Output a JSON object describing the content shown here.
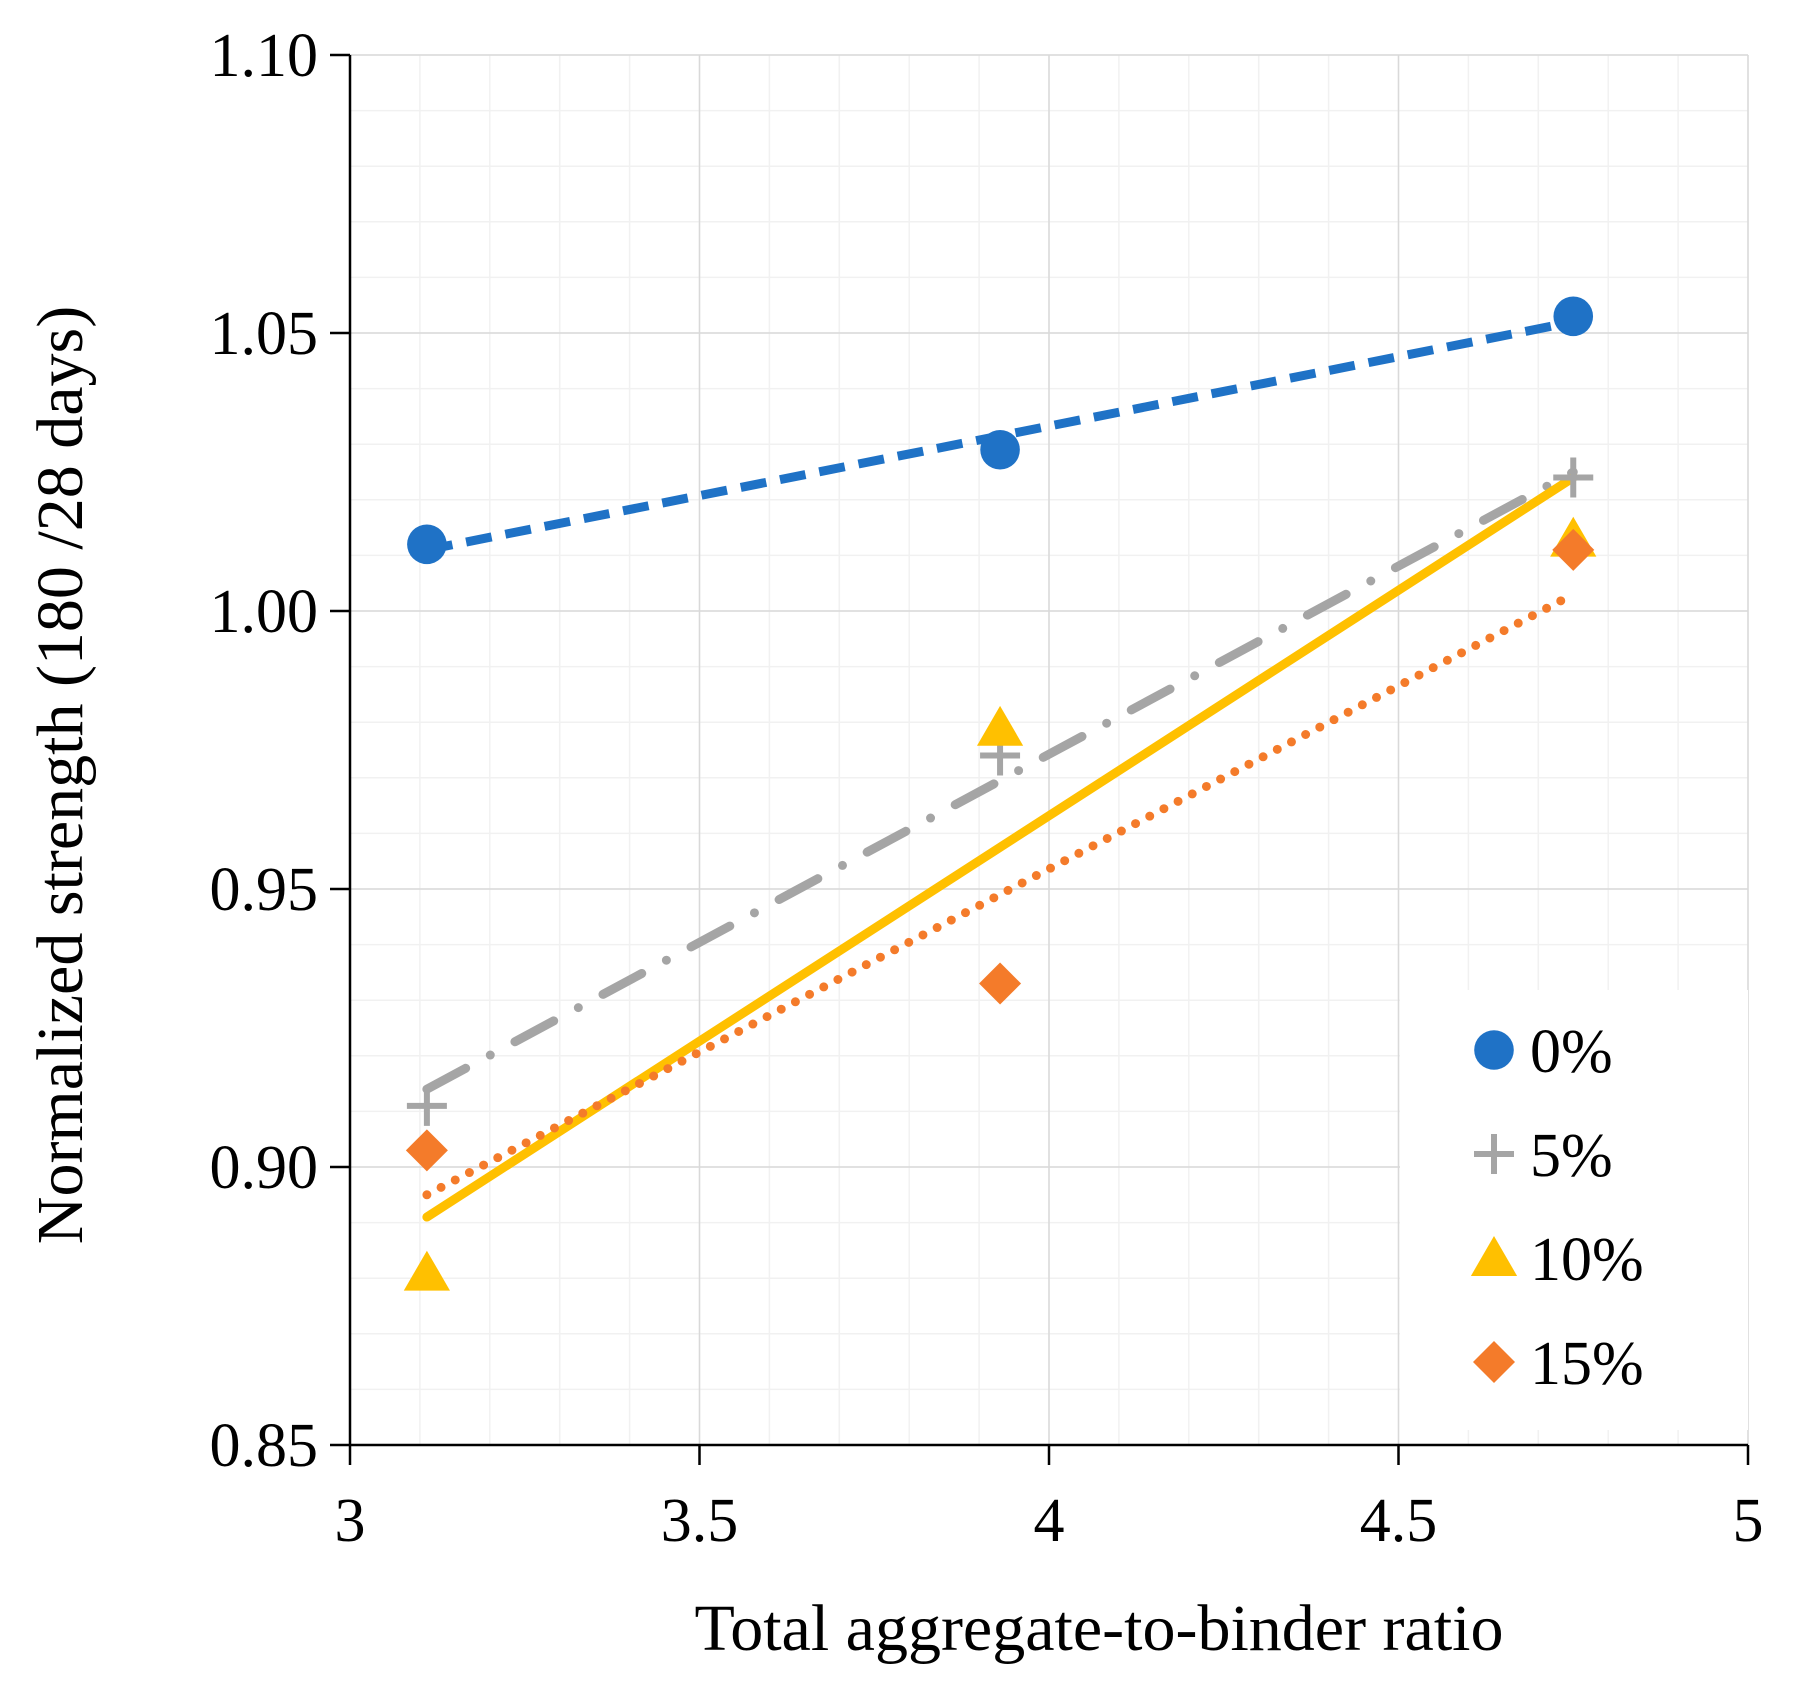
{
  "chart_data": {
    "type": "scatter",
    "title": "",
    "xlabel": "Total aggregate-to-binder ratio",
    "ylabel": "Normalized strength (180 /28 days)",
    "xlim": [
      3,
      5
    ],
    "ylim": [
      0.85,
      1.1
    ],
    "xticks": [
      3,
      3.5,
      4,
      4.5,
      5
    ],
    "xtick_labels": [
      "3",
      "3.5",
      "4",
      "4.5",
      "5"
    ],
    "yticks": [
      0.85,
      0.9,
      0.95,
      1.0,
      1.05,
      1.1
    ],
    "ytick_labels": [
      "0.85",
      "0.90",
      "0.95",
      "1.00",
      "1.05",
      "1.10"
    ],
    "grid": true,
    "legend_position": "bottom-right",
    "series": [
      {
        "name": "0%",
        "marker": "circle",
        "color": "#1f72c6",
        "x": [
          3.11,
          3.93,
          4.75
        ],
        "y": [
          1.012,
          1.029,
          1.053
        ],
        "trendline": {
          "style": "dashed",
          "x": [
            3.11,
            4.75
          ],
          "y": [
            1.011,
            1.052
          ]
        }
      },
      {
        "name": "5%",
        "marker": "plus",
        "color": "#a5a5a5",
        "x": [
          3.11,
          3.93,
          4.75
        ],
        "y": [
          0.911,
          0.974,
          1.024
        ],
        "trendline": {
          "style": "dash-dot",
          "x": [
            3.11,
            4.75
          ],
          "y": [
            0.914,
            1.025
          ]
        }
      },
      {
        "name": "10%",
        "marker": "triangle",
        "color": "#ffc000",
        "x": [
          3.11,
          3.93,
          4.75
        ],
        "y": [
          0.881,
          0.979,
          1.013
        ],
        "trendline": {
          "style": "solid",
          "x": [
            3.11,
            4.75
          ],
          "y": [
            0.891,
            1.024
          ]
        }
      },
      {
        "name": "15%",
        "marker": "diamond",
        "color": "#f47b2a",
        "x": [
          3.11,
          3.93,
          4.75
        ],
        "y": [
          0.903,
          0.933,
          1.011
        ],
        "trendline": {
          "style": "dotted",
          "x": [
            3.11,
            4.75
          ],
          "y": [
            0.895,
            1.003
          ]
        }
      }
    ]
  }
}
